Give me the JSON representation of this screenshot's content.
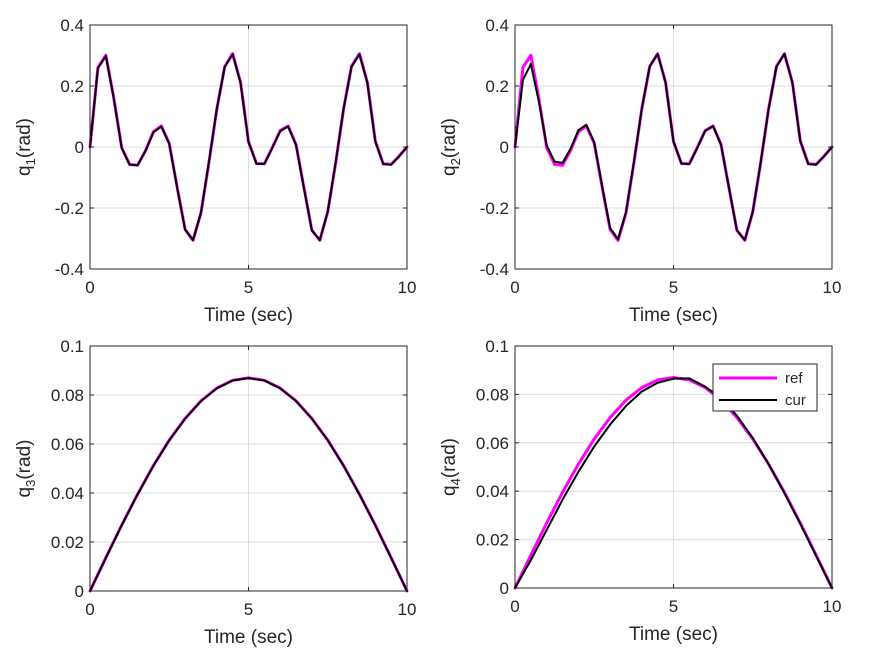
{
  "colors": {
    "ref": "#ff00ff",
    "cur": "#000000",
    "grid": "#dcdcdc",
    "axis": "#262626"
  },
  "legend": {
    "entries": [
      "ref",
      "cur"
    ],
    "location": "top-right of q4 panel"
  },
  "chart_data": [
    {
      "type": "line",
      "ylabel_main": "q",
      "ylabel_sub": "1",
      "ylabel_unit": "(rad)",
      "xlabel": "Time (sec)",
      "xlim": [
        0,
        10
      ],
      "ylim": [
        -0.4,
        0.4
      ],
      "xticks": [
        "0",
        "5",
        "10"
      ],
      "yticks": [
        "-0.4",
        "-0.2",
        "0",
        "0.2",
        "0.4"
      ],
      "grid": true,
      "x": [
        0,
        0.25,
        0.5,
        0.75,
        1,
        1.25,
        1.5,
        1.75,
        2,
        2.25,
        2.5,
        2.75,
        3,
        3.25,
        3.5,
        3.75,
        4,
        4.25,
        4.5,
        4.75,
        5,
        5.25,
        5.5,
        5.75,
        6,
        6.25,
        6.5,
        6.75,
        7,
        7.25,
        7.5,
        7.75,
        8,
        8.25,
        8.5,
        8.75,
        9,
        9.25,
        9.5,
        9.75,
        10
      ],
      "series": [
        {
          "name": "ref",
          "values": [
            0,
            0.261,
            0.301,
            0.161,
            -0.002,
            -0.057,
            -0.06,
            -0.012,
            0.05,
            0.069,
            0.012,
            -0.132,
            -0.27,
            -0.306,
            -0.217,
            -0.052,
            0.124,
            0.264,
            0.306,
            0.212,
            0.018,
            -0.054,
            -0.055,
            -0.002,
            0.054,
            0.069,
            0.008,
            -0.134,
            -0.273,
            -0.306,
            -0.213,
            -0.052,
            0.125,
            0.265,
            0.306,
            0.212,
            0.02,
            -0.055,
            -0.057,
            -0.03,
            0
          ]
        },
        {
          "name": "cur",
          "values": [
            0,
            0.258,
            0.298,
            0.159,
            -0.004,
            -0.058,
            -0.06,
            -0.013,
            0.048,
            0.067,
            0.01,
            -0.134,
            -0.271,
            -0.305,
            -0.215,
            -0.05,
            0.125,
            0.262,
            0.304,
            0.21,
            0.016,
            -0.055,
            -0.056,
            -0.003,
            0.052,
            0.067,
            0.006,
            -0.136,
            -0.274,
            -0.305,
            -0.211,
            -0.05,
            0.126,
            0.263,
            0.304,
            0.21,
            0.018,
            -0.056,
            -0.058,
            -0.031,
            0
          ]
        }
      ]
    },
    {
      "type": "line",
      "ylabel_main": "q",
      "ylabel_sub": "2",
      "ylabel_unit": "(rad)",
      "xlabel": "Time (sec)",
      "xlim": [
        0,
        10
      ],
      "ylim": [
        -0.4,
        0.4
      ],
      "xticks": [
        "0",
        "5",
        "10"
      ],
      "yticks": [
        "-0.4",
        "-0.2",
        "0",
        "0.2",
        "0.4"
      ],
      "grid": true,
      "x": [
        0,
        0.25,
        0.5,
        0.75,
        1,
        1.25,
        1.5,
        1.75,
        2,
        2.25,
        2.5,
        2.75,
        3,
        3.25,
        3.5,
        3.75,
        4,
        4.25,
        4.5,
        4.75,
        5,
        5.25,
        5.5,
        5.75,
        6,
        6.25,
        6.5,
        6.75,
        7,
        7.25,
        7.5,
        7.75,
        8,
        8.25,
        8.5,
        8.75,
        9,
        9.25,
        9.5,
        9.75,
        10
      ],
      "series": [
        {
          "name": "ref",
          "values": [
            0,
            0.261,
            0.301,
            0.161,
            -0.002,
            -0.057,
            -0.06,
            -0.012,
            0.05,
            0.069,
            0.012,
            -0.132,
            -0.27,
            -0.306,
            -0.217,
            -0.052,
            0.124,
            0.264,
            0.306,
            0.212,
            0.018,
            -0.054,
            -0.055,
            -0.002,
            0.054,
            0.069,
            0.008,
            -0.134,
            -0.273,
            -0.306,
            -0.213,
            -0.052,
            0.125,
            0.265,
            0.306,
            0.212,
            0.02,
            -0.055,
            -0.057,
            -0.03,
            0
          ]
        },
        {
          "name": "cur",
          "values": [
            0,
            0.22,
            0.272,
            0.15,
            0.005,
            -0.048,
            -0.052,
            -0.006,
            0.055,
            0.073,
            0.015,
            -0.128,
            -0.266,
            -0.302,
            -0.214,
            -0.05,
            0.126,
            0.265,
            0.305,
            0.211,
            0.018,
            -0.054,
            -0.056,
            -0.003,
            0.053,
            0.068,
            0.007,
            -0.134,
            -0.273,
            -0.305,
            -0.212,
            -0.051,
            0.125,
            0.264,
            0.305,
            0.211,
            0.019,
            -0.056,
            -0.058,
            -0.03,
            0
          ]
        }
      ]
    },
    {
      "type": "line",
      "ylabel_main": "q",
      "ylabel_sub": "3",
      "ylabel_unit": "(rad)",
      "xlabel": "Time (sec)",
      "xlim": [
        0,
        10
      ],
      "ylim": [
        0,
        0.1
      ],
      "xticks": [
        "0",
        "5",
        "10"
      ],
      "yticks": [
        "0",
        "0.02",
        "0.04",
        "0.06",
        "0.08",
        "0.1"
      ],
      "grid": true,
      "x": [
        0,
        0.5,
        1,
        1.5,
        2,
        2.5,
        3,
        3.5,
        4,
        4.5,
        5,
        5.5,
        6,
        6.5,
        7,
        7.5,
        8,
        8.5,
        9,
        9.5,
        10
      ],
      "series": [
        {
          "name": "ref",
          "values": [
            0,
            0.0136,
            0.0269,
            0.0395,
            0.0512,
            0.0616,
            0.0704,
            0.0776,
            0.0828,
            0.086,
            0.087,
            0.086,
            0.0828,
            0.0776,
            0.0704,
            0.0616,
            0.0512,
            0.0395,
            0.0269,
            0.0136,
            0
          ]
        },
        {
          "name": "cur",
          "values": [
            0,
            0.0135,
            0.0268,
            0.0394,
            0.0511,
            0.0615,
            0.0703,
            0.0775,
            0.0827,
            0.0859,
            0.0869,
            0.0859,
            0.0827,
            0.0775,
            0.0703,
            0.0615,
            0.0511,
            0.0394,
            0.0268,
            0.0135,
            0
          ]
        }
      ]
    },
    {
      "type": "line",
      "ylabel_main": "q",
      "ylabel_sub": "4",
      "ylabel_unit": "(rad)",
      "xlabel": "Time (sec)",
      "xlim": [
        0,
        10
      ],
      "ylim": [
        0,
        0.1
      ],
      "xticks": [
        "0",
        "5",
        "10"
      ],
      "yticks": [
        "0",
        "0.02",
        "0.04",
        "0.06",
        "0.08",
        "0.1"
      ],
      "grid": true,
      "legend": [
        "ref",
        "cur"
      ],
      "x": [
        0,
        0.5,
        1,
        1.5,
        2,
        2.5,
        3,
        3.5,
        4,
        4.5,
        5,
        5.5,
        6,
        6.5,
        7,
        7.5,
        8,
        8.5,
        9,
        9.5,
        10
      ],
      "series": [
        {
          "name": "ref",
          "values": [
            0,
            0.0136,
            0.0269,
            0.0395,
            0.0512,
            0.0616,
            0.0704,
            0.0776,
            0.0828,
            0.086,
            0.087,
            0.086,
            0.0828,
            0.0776,
            0.0704,
            0.0616,
            0.0512,
            0.0395,
            0.0269,
            0.0136,
            0
          ]
        },
        {
          "name": "cur",
          "values": [
            0,
            0.0115,
            0.024,
            0.0365,
            0.048,
            0.0585,
            0.0675,
            0.0752,
            0.0812,
            0.0848,
            0.0865,
            0.0866,
            0.0832,
            0.0785,
            0.0712,
            0.062,
            0.0512,
            0.0392,
            0.0265,
            0.0132,
            0
          ]
        }
      ]
    }
  ]
}
